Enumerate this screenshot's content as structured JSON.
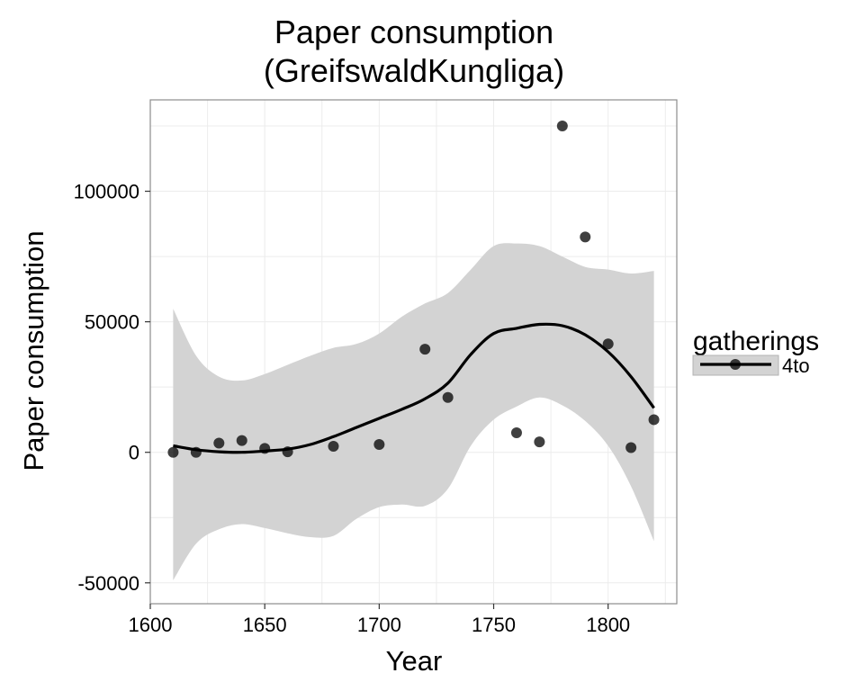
{
  "chart_data": {
    "type": "scatter",
    "title_line1": "Paper consumption",
    "title_line2": "(GreifswaldKungliga)",
    "xlabel": "Year",
    "ylabel": "Paper consumption",
    "xlim": [
      1600,
      1830
    ],
    "ylim": [
      -58000,
      135000
    ],
    "x_ticks": [
      1600,
      1650,
      1700,
      1750,
      1800
    ],
    "y_ticks": [
      -50000,
      0,
      50000,
      100000
    ],
    "grid": true,
    "legend": {
      "title": "gatherings",
      "placement": "right",
      "entries": [
        {
          "label": "4to"
        }
      ]
    },
    "series": [
      {
        "name": "4to",
        "points": [
          {
            "x": 1610,
            "y": 0
          },
          {
            "x": 1620,
            "y": 0
          },
          {
            "x": 1630,
            "y": 3500
          },
          {
            "x": 1640,
            "y": 4500
          },
          {
            "x": 1650,
            "y": 1500
          },
          {
            "x": 1660,
            "y": 200
          },
          {
            "x": 1680,
            "y": 2300
          },
          {
            "x": 1700,
            "y": 3000
          },
          {
            "x": 1720,
            "y": 39500
          },
          {
            "x": 1730,
            "y": 21000
          },
          {
            "x": 1760,
            "y": 7500
          },
          {
            "x": 1770,
            "y": 4000
          },
          {
            "x": 1780,
            "y": 125000
          },
          {
            "x": 1790,
            "y": 82500
          },
          {
            "x": 1800,
            "y": 41500
          },
          {
            "x": 1810,
            "y": 1800
          },
          {
            "x": 1820,
            "y": 12500
          }
        ],
        "smooth": [
          {
            "x": 1610,
            "y": 2500,
            "lower": -49000,
            "upper": 55000
          },
          {
            "x": 1620,
            "y": 1000,
            "lower": -35000,
            "upper": 37000
          },
          {
            "x": 1630,
            "y": 200,
            "lower": -29500,
            "upper": 29000
          },
          {
            "x": 1640,
            "y": 0,
            "lower": -27500,
            "upper": 27500
          },
          {
            "x": 1650,
            "y": 500,
            "lower": -29000,
            "upper": 30000
          },
          {
            "x": 1660,
            "y": 1200,
            "lower": -31000,
            "upper": 33500
          },
          {
            "x": 1670,
            "y": 3000,
            "lower": -32500,
            "upper": 37000
          },
          {
            "x": 1680,
            "y": 6000,
            "lower": -32000,
            "upper": 40000
          },
          {
            "x": 1690,
            "y": 9500,
            "lower": -25500,
            "upper": 41500
          },
          {
            "x": 1700,
            "y": 13000,
            "lower": -21000,
            "upper": 45500
          },
          {
            "x": 1710,
            "y": 16500,
            "lower": -20000,
            "upper": 52000
          },
          {
            "x": 1720,
            "y": 20500,
            "lower": -20500,
            "upper": 57000
          },
          {
            "x": 1730,
            "y": 26500,
            "lower": -14000,
            "upper": 61000
          },
          {
            "x": 1740,
            "y": 37500,
            "lower": 2500,
            "upper": 70000
          },
          {
            "x": 1750,
            "y": 45500,
            "lower": 12500,
            "upper": 79000
          },
          {
            "x": 1760,
            "y": 47500,
            "lower": 17500,
            "upper": 80000
          },
          {
            "x": 1770,
            "y": 49000,
            "lower": 21000,
            "upper": 79000
          },
          {
            "x": 1780,
            "y": 48500,
            "lower": 18000,
            "upper": 75000
          },
          {
            "x": 1790,
            "y": 45000,
            "lower": 12000,
            "upper": 71000
          },
          {
            "x": 1800,
            "y": 38500,
            "lower": 2500,
            "upper": 70000
          },
          {
            "x": 1810,
            "y": 29000,
            "lower": -13000,
            "upper": 68500
          },
          {
            "x": 1820,
            "y": 17000,
            "lower": -34000,
            "upper": 69500
          }
        ]
      }
    ]
  },
  "colors": {
    "point": "#000000",
    "line": "#000000",
    "ribbon": "#d3d3d3",
    "grid": "#ececec",
    "panel_border": "#8c8c8c",
    "legend_key_bg": "#d3d3d3"
  }
}
